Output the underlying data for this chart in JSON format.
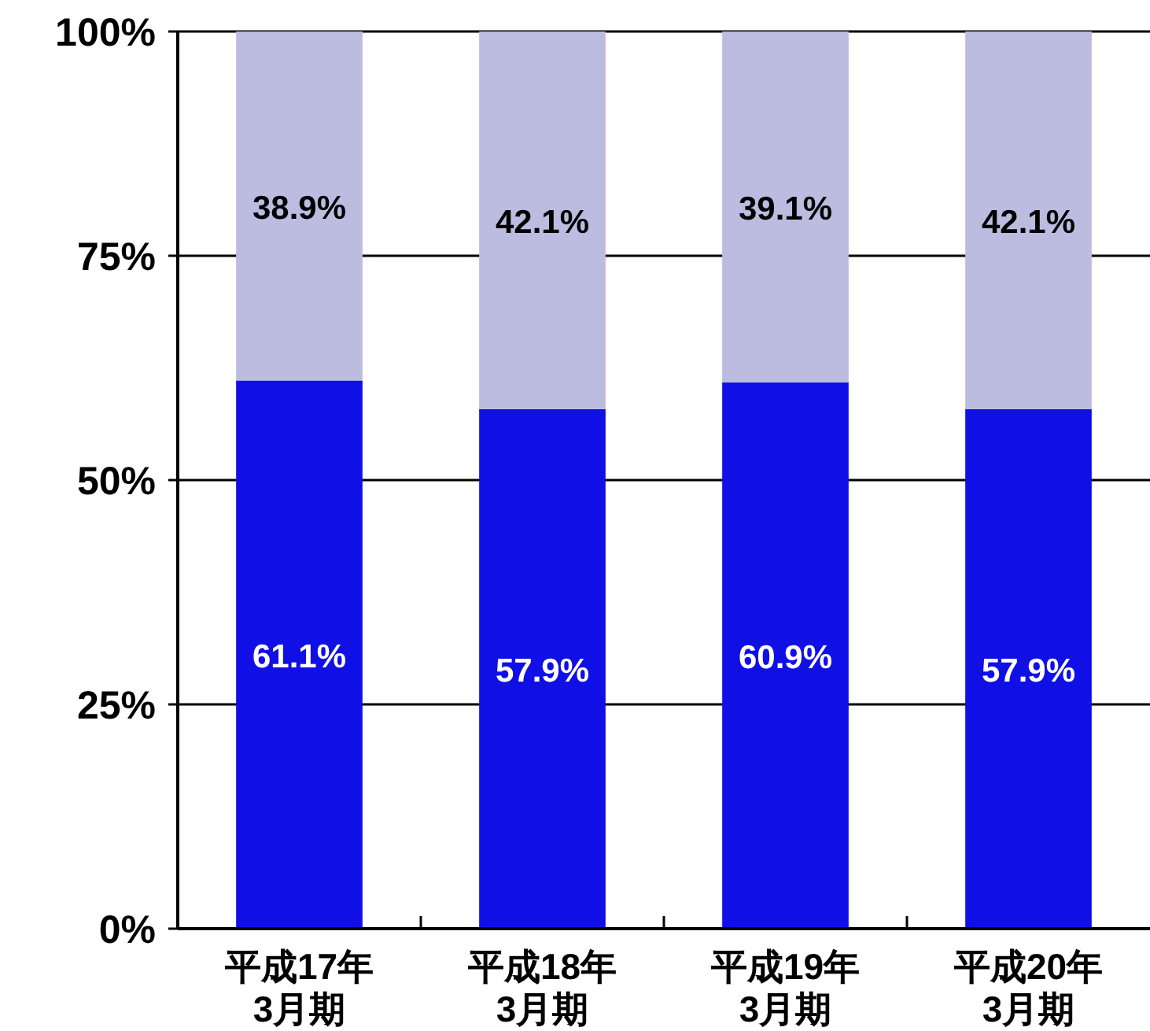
{
  "chart_data": {
    "type": "bar",
    "stacked": true,
    "categories": [
      "平成17年\n3月期",
      "平成18年\n3月期",
      "平成19年\n3月期",
      "平成20年\n3月期"
    ],
    "series": [
      {
        "color": "#1010e6",
        "values": [
          61.1,
          57.9,
          60.9,
          57.9
        ],
        "value_labels": [
          "61.1%",
          "57.9%",
          "60.9%",
          "57.9%"
        ]
      },
      {
        "color": "#bcbce0",
        "values": [
          38.9,
          42.1,
          39.1,
          42.1
        ],
        "value_labels": [
          "38.9%",
          "42.1%",
          "39.1%",
          "42.1%"
        ]
      }
    ],
    "ylim": [
      0,
      100
    ],
    "yticks": [
      {
        "value": 0,
        "label": "0%"
      },
      {
        "value": 25,
        "label": "25%"
      },
      {
        "value": 50,
        "label": "50%"
      },
      {
        "value": 75,
        "label": "75%"
      },
      {
        "value": 100,
        "label": "100%"
      }
    ],
    "grid": "y"
  }
}
